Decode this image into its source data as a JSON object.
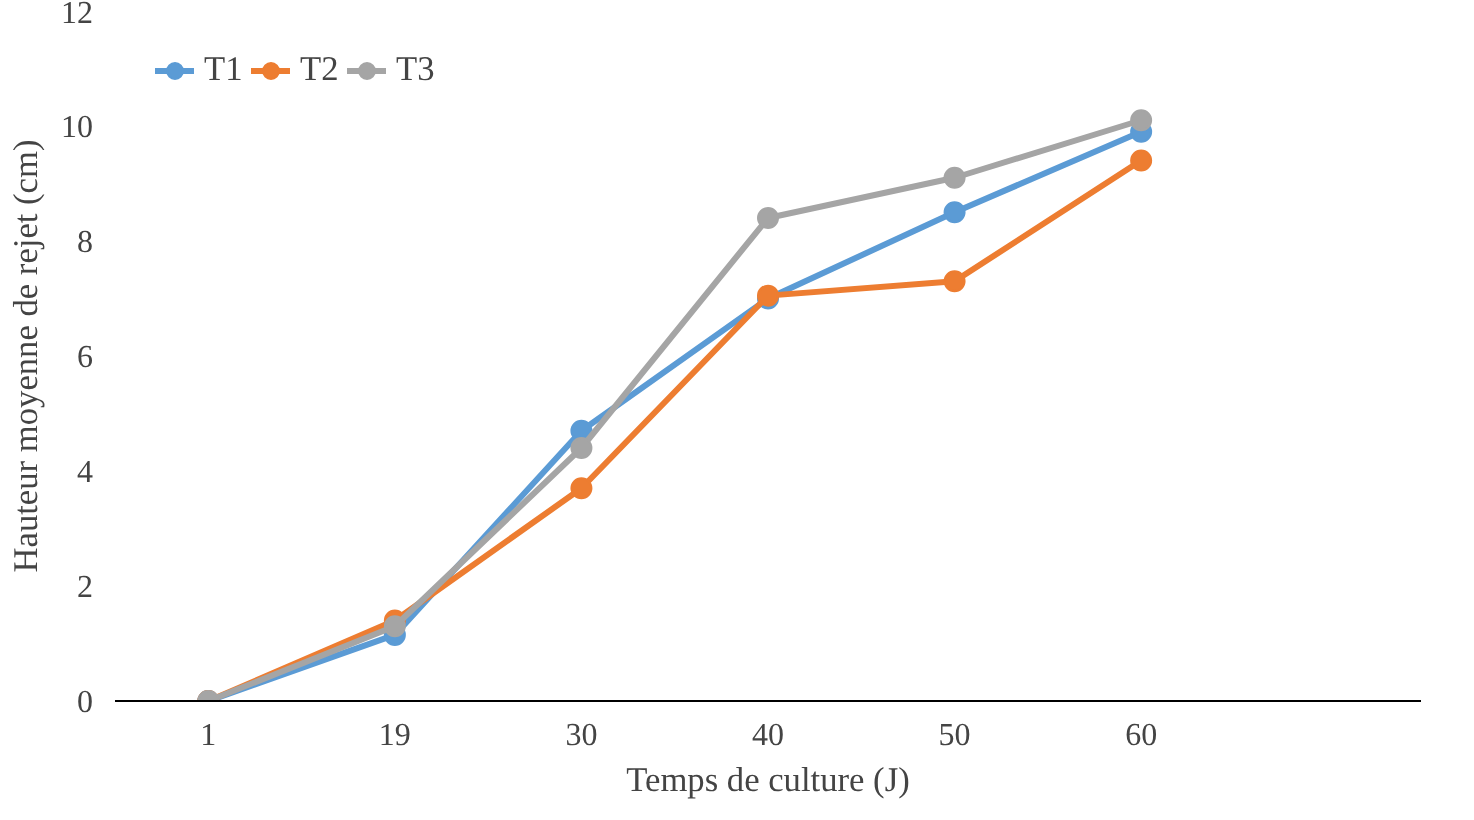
{
  "chart_data": {
    "type": "line",
    "xlabel": "Temps de culture (J)",
    "ylabel": "Hauteur moyenne de rejet (cm)",
    "categories": [
      "1",
      "19",
      "30",
      "40",
      "50",
      "60",
      null
    ],
    "ylim": [
      0,
      12
    ],
    "yticks": [
      0,
      2,
      4,
      6,
      8,
      10,
      12
    ],
    "grid": false,
    "legend": "top left",
    "marker": "circle",
    "line_style": "solid",
    "series": [
      {
        "name": "T1",
        "color": "#5b9bd5",
        "values": [
          0,
          1.15,
          4.7,
          7.0,
          8.5,
          9.9,
          null
        ]
      },
      {
        "name": "T2",
        "color": "#ed7d31",
        "values": [
          0,
          1.4,
          3.7,
          7.05,
          7.3,
          9.4,
          null
        ]
      },
      {
        "name": "T3",
        "color": "#a5a5a5",
        "values": [
          0,
          1.3,
          4.4,
          8.4,
          9.1,
          10.1,
          null
        ]
      }
    ]
  }
}
